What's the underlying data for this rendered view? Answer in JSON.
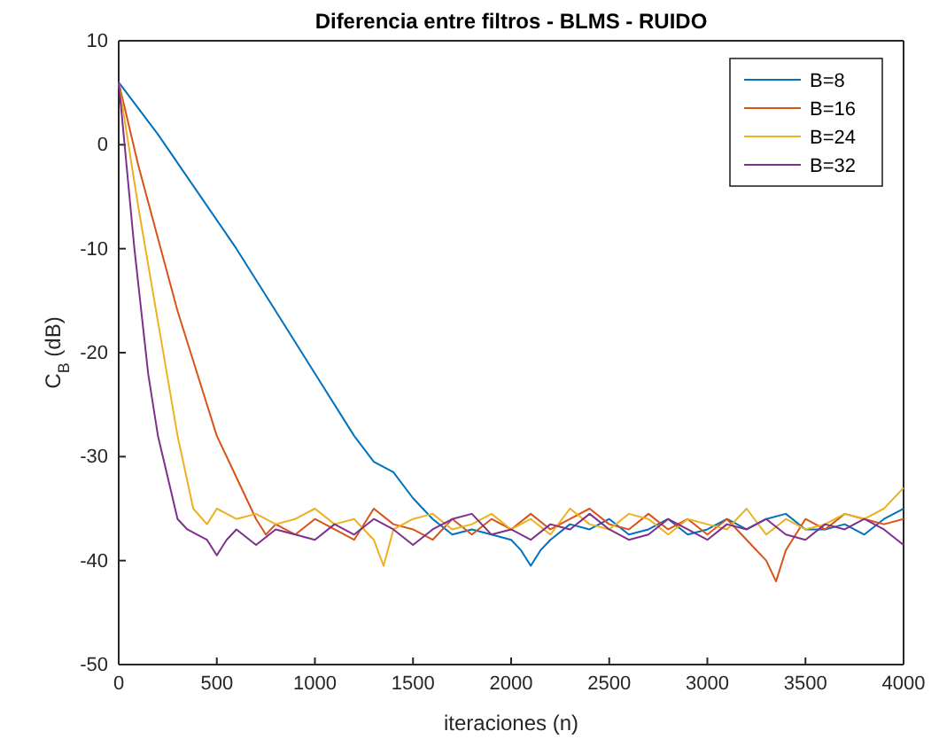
{
  "chart_data": {
    "type": "line",
    "title": "Diferencia entre filtros - BLMS - RUIDO",
    "xlabel": "iteraciones (n)",
    "ylabel": "C$_{B}$ (dB)",
    "xlim": [
      0,
      4000
    ],
    "ylim": [
      -50,
      10
    ],
    "xticks": [
      0,
      500,
      1000,
      1500,
      2000,
      2500,
      3000,
      3500,
      4000
    ],
    "yticks": [
      -50,
      -40,
      -30,
      -20,
      -10,
      0,
      10
    ],
    "grid": false,
    "legend": "top right",
    "line_style": "solid",
    "marker": "none",
    "series": [
      {
        "name": "B=8",
        "color": "#0072bd",
        "x": [
          0,
          200,
          400,
          600,
          800,
          1000,
          1200,
          1300,
          1400,
          1500,
          1600,
          1700,
          1800,
          1900,
          2000,
          2050,
          2100,
          2150,
          2200,
          2300,
          2400,
          2500,
          2600,
          2700,
          2800,
          2900,
          3000,
          3100,
          3200,
          3300,
          3400,
          3500,
          3600,
          3700,
          3800,
          3900,
          4000
        ],
        "values": [
          6,
          1,
          -4.5,
          -10,
          -16,
          -22,
          -28,
          -30.5,
          -31.5,
          -34,
          -36,
          -37.5,
          -37,
          -37.5,
          -38,
          -39,
          -40.5,
          -39,
          -38,
          -36.5,
          -37,
          -36,
          -37.5,
          -37,
          -36,
          -37.5,
          -37,
          -36,
          -37,
          -36,
          -35.5,
          -37,
          -37,
          -36.5,
          -37.5,
          -36,
          -35
        ]
      },
      {
        "name": "B=16",
        "color": "#d95319",
        "x": [
          0,
          100,
          200,
          300,
          400,
          500,
          600,
          650,
          700,
          750,
          800,
          900,
          1000,
          1100,
          1200,
          1300,
          1400,
          1500,
          1600,
          1700,
          1800,
          1900,
          2000,
          2100,
          2200,
          2300,
          2400,
          2500,
          2600,
          2700,
          2800,
          2900,
          3000,
          3100,
          3200,
          3300,
          3350,
          3400,
          3500,
          3600,
          3700,
          3800,
          3900,
          4000
        ],
        "values": [
          6,
          -2,
          -9,
          -16,
          -22,
          -28,
          -32,
          -34,
          -36,
          -37.5,
          -36.5,
          -37.5,
          -36,
          -37,
          -38,
          -35,
          -36.5,
          -37,
          -38,
          -36,
          -37.5,
          -36,
          -37,
          -35.5,
          -37,
          -36,
          -35,
          -36.5,
          -37,
          -35.5,
          -37,
          -36,
          -37.5,
          -36,
          -38,
          -40,
          -42,
          -39,
          -36,
          -37,
          -35.5,
          -36,
          -36.5,
          -36
        ]
      },
      {
        "name": "B=24",
        "color": "#edb120",
        "x": [
          0,
          100,
          200,
          300,
          380,
          450,
          500,
          600,
          700,
          800,
          900,
          1000,
          1100,
          1200,
          1300,
          1350,
          1400,
          1500,
          1600,
          1700,
          1800,
          1900,
          2000,
          2100,
          2200,
          2300,
          2400,
          2500,
          2600,
          2700,
          2800,
          2900,
          3000,
          3100,
          3200,
          3300,
          3400,
          3500,
          3600,
          3700,
          3800,
          3900,
          4000
        ],
        "values": [
          6,
          -6,
          -17,
          -28,
          -35,
          -36.5,
          -35,
          -36,
          -35.5,
          -36.5,
          -36,
          -35,
          -36.5,
          -36,
          -38,
          -40.5,
          -37,
          -36,
          -35.5,
          -37,
          -36.5,
          -35.5,
          -37,
          -36,
          -37.5,
          -35,
          -36.5,
          -37,
          -35.5,
          -36,
          -37.5,
          -36,
          -36.5,
          -37,
          -35,
          -37.5,
          -36,
          -37,
          -36.5,
          -35.5,
          -36,
          -35,
          -33
        ]
      },
      {
        "name": "B=32",
        "color": "#7e2f8e",
        "x": [
          0,
          80,
          150,
          200,
          250,
          300,
          350,
          400,
          450,
          500,
          550,
          600,
          700,
          800,
          900,
          1000,
          1100,
          1200,
          1300,
          1400,
          1500,
          1600,
          1700,
          1800,
          1900,
          2000,
          2100,
          2200,
          2300,
          2400,
          2500,
          2600,
          2700,
          2800,
          2900,
          3000,
          3100,
          3200,
          3300,
          3400,
          3500,
          3600,
          3700,
          3800,
          3900,
          4000
        ],
        "values": [
          6,
          -10,
          -22,
          -28,
          -32,
          -36,
          -37,
          -37.5,
          -38,
          -39.5,
          -38,
          -37,
          -38.5,
          -37,
          -37.5,
          -38,
          -36.5,
          -37.5,
          -36,
          -37,
          -38.5,
          -37,
          -36,
          -35.5,
          -37.5,
          -37,
          -38,
          -36.5,
          -37,
          -35.5,
          -37,
          -38,
          -37.5,
          -36,
          -37,
          -38,
          -36.5,
          -37,
          -36,
          -37.5,
          -38,
          -36.5,
          -37,
          -36,
          -37,
          -38.5
        ]
      }
    ]
  }
}
